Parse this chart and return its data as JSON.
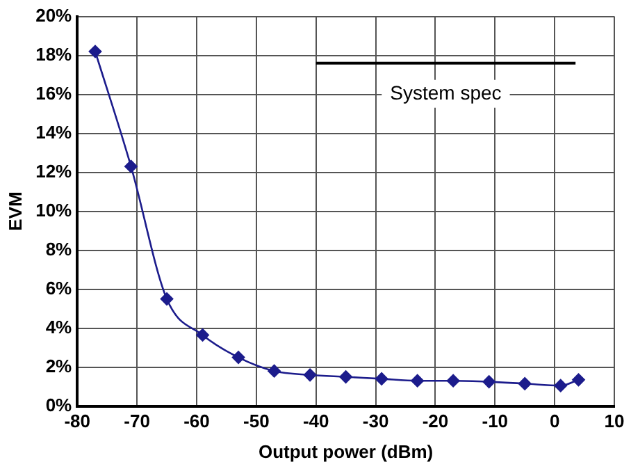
{
  "chart_data": {
    "type": "line",
    "xlabel": "Output power (dBm)",
    "ylabel": "EVM",
    "xlim": [
      -80,
      10
    ],
    "xticks": [
      -80,
      -70,
      -60,
      -50,
      -40,
      -30,
      -20,
      -10,
      0,
      10
    ],
    "ylim": [
      0,
      20
    ],
    "yticks": [
      {
        "value": 0,
        "label": "0%"
      },
      {
        "value": 2,
        "label": "2%"
      },
      {
        "value": 4,
        "label": "4%"
      },
      {
        "value": 6,
        "label": "6%"
      },
      {
        "value": 8,
        "label": "8%"
      },
      {
        "value": 10,
        "label": "10%"
      },
      {
        "value": 12,
        "label": "12%"
      },
      {
        "value": 14,
        "label": "14%"
      },
      {
        "value": 16,
        "label": "16%"
      },
      {
        "value": 18,
        "label": "18%"
      },
      {
        "value": 20,
        "label": "20%"
      }
    ],
    "grid": true,
    "legend": false,
    "series": [
      {
        "color": "#1c1c8c",
        "marker": "diamond",
        "x": [
          -77,
          -71,
          -65,
          -59,
          -53,
          -47,
          -41,
          -35,
          -29,
          -23,
          -17,
          -11,
          -5,
          1,
          4
        ],
        "values": [
          18.2,
          12.3,
          5.5,
          3.65,
          2.5,
          1.8,
          1.6,
          1.5,
          1.4,
          1.3,
          1.3,
          1.25,
          1.15,
          1.05,
          1.35
        ]
      },
      {
        "name": "System spec",
        "color": "#000000",
        "marker": "none",
        "x": [
          -40,
          3.5
        ],
        "values": [
          17.6,
          17.6
        ]
      }
    ]
  }
}
